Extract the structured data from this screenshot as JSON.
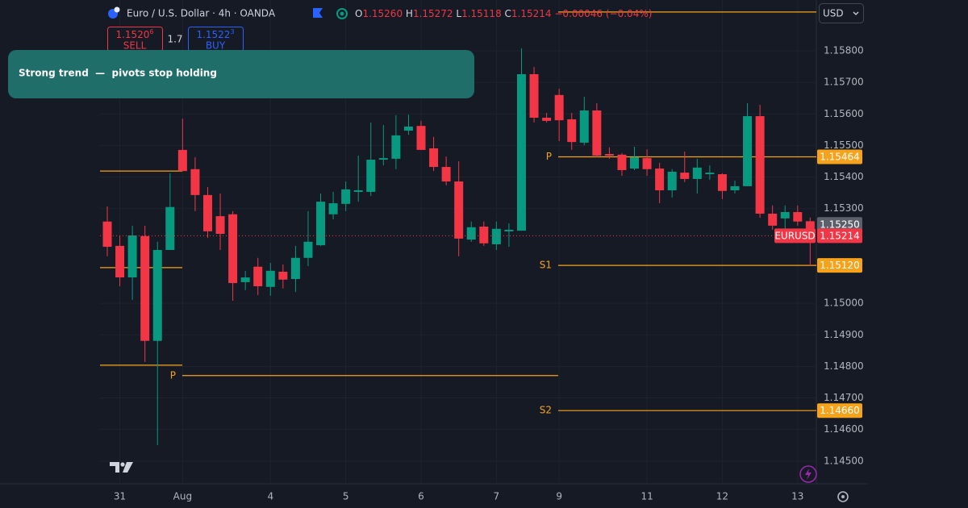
{
  "chart_data": {
    "type": "candlestick",
    "title": "Euro / U.S. Dollar · 4h · OANDA",
    "readout": [
      {
        "label": "O",
        "value": "1.15260"
      },
      {
        "label": "H",
        "value": "1.15272"
      },
      {
        "label": "L",
        "value": "1.15118"
      },
      {
        "label": "C",
        "value": "1.15214"
      }
    ],
    "change": "−0.00046 (−0.04%)",
    "sell": {
      "price": "1.1520",
      "pip": "6",
      "label": "SELL"
    },
    "spread": "1.7",
    "buy": {
      "price": "1.1522",
      "pip": "3",
      "label": "BUY"
    },
    "currency": "USD",
    "annotation": "Strong trend  —  pivots stop holding",
    "up_color": "#089981",
    "down_color": "#f23645",
    "grid": true,
    "categories": [
      null,
      "31",
      null,
      null,
      null,
      null,
      "Aug",
      null,
      null,
      null,
      null,
      null,
      null,
      "4",
      null,
      null,
      null,
      null,
      null,
      "5",
      null,
      null,
      null,
      null,
      null,
      "6",
      null,
      null,
      null,
      null,
      null,
      "7",
      null,
      null,
      null,
      null,
      "9",
      null,
      null,
      null,
      null,
      null,
      null,
      "11",
      null,
      null,
      null,
      null,
      null,
      "12",
      null,
      null,
      null,
      null,
      null,
      "13",
      null
    ],
    "open": [
      1.15259,
      1.15182,
      1.15082,
      1.15213,
      1.14881,
      1.15169,
      1.15486,
      1.15425,
      1.15343,
      1.15276,
      1.15282,
      1.15067,
      1.15116,
      1.15052,
      1.151,
      1.15077,
      1.15144,
      1.15184,
      1.15282,
      1.15315,
      1.15353,
      1.15353,
      1.15455,
      1.15458,
      1.15547,
      1.15562,
      1.15491,
      1.15432,
      1.15386,
      1.15202,
      1.15243,
      1.15187,
      1.15228,
      1.1523,
      1.15726,
      1.15588,
      1.1566,
      1.15583,
      1.15509,
      1.15611,
      1.15473,
      1.15471,
      1.15427,
      1.1546,
      1.15427,
      1.15358,
      1.15414,
      1.15394,
      1.15409,
      1.15409,
      1.15358,
      1.15371,
      1.15593,
      1.15284,
      1.15269,
      1.15289,
      1.1526
    ],
    "high": [
      1.15307,
      1.15215,
      1.15246,
      1.15246,
      1.15195,
      1.15412,
      1.15585,
      1.15463,
      1.15368,
      1.15348,
      1.15292,
      1.15103,
      1.15144,
      1.15128,
      1.15123,
      1.15182,
      1.15292,
      1.15348,
      1.15353,
      1.15386,
      1.15468,
      1.15573,
      1.15565,
      1.15596,
      1.15598,
      1.15578,
      1.15527,
      1.15465,
      1.1545,
      1.15259,
      1.15259,
      1.15259,
      1.15253,
      1.15808,
      1.15749,
      1.15603,
      1.1568,
      1.15603,
      1.15654,
      1.15634,
      1.15494,
      1.15476,
      1.15496,
      1.15488,
      1.15445,
      1.15425,
      1.15481,
      1.15458,
      1.15437,
      1.15412,
      1.15389,
      1.15634,
      1.15629,
      1.1531,
      1.1531,
      1.1531,
      1.15272
    ],
    "low": [
      1.15149,
      1.15054,
      1.15011,
      1.14814,
      1.14551,
      1.15169,
      1.15419,
      1.15292,
      1.15207,
      1.15169,
      1.15008,
      1.15042,
      1.15026,
      1.15024,
      1.15047,
      1.15036,
      1.15118,
      1.15182,
      1.15266,
      1.15292,
      1.15322,
      1.1534,
      1.15437,
      1.15425,
      1.15534,
      1.15486,
      1.15419,
      1.15374,
      1.15149,
      1.15195,
      1.15182,
      1.15169,
      1.15179,
      1.1523,
      1.15573,
      1.15573,
      1.15514,
      1.15486,
      1.15501,
      1.15463,
      1.15458,
      1.15404,
      1.15422,
      1.15404,
      1.15317,
      1.15335,
      1.15384,
      1.15348,
      1.15391,
      1.1533,
      1.15348,
      1.15371,
      1.15271,
      1.15233,
      1.15233,
      1.15246,
      1.15118
    ],
    "close": [
      1.15179,
      1.15082,
      1.15215,
      1.14881,
      1.15169,
      1.15305,
      1.15419,
      1.15343,
      1.15228,
      1.1522,
      1.15064,
      1.15082,
      1.15054,
      1.15103,
      1.15075,
      1.15144,
      1.15195,
      1.15322,
      1.15317,
      1.15361,
      1.15358,
      1.15455,
      1.1546,
      1.15532,
      1.1556,
      1.15486,
      1.15432,
      1.15386,
      1.15205,
      1.15241,
      1.1519,
      1.15236,
      1.15233,
      1.15726,
      1.15588,
      1.15578,
      1.1558,
      1.15511,
      1.15611,
      1.15468,
      1.15468,
      1.15422,
      1.15463,
      1.15425,
      1.15358,
      1.15417,
      1.15394,
      1.1543,
      1.15414,
      1.15356,
      1.15371,
      1.15593,
      1.15284,
      1.15246,
      1.15289,
      1.15259,
      1.15214
    ],
    "ylim": [
      1.14428,
      1.15961
    ],
    "yticks": [
      {
        "value": 1.158,
        "label": "1.15800"
      },
      {
        "value": 1.157,
        "label": "1.15700"
      },
      {
        "value": 1.156,
        "label": "1.15600"
      },
      {
        "value": 1.155,
        "label": "1.15500"
      },
      {
        "value": 1.154,
        "label": "1.15400"
      },
      {
        "value": 1.153,
        "label": "1.15300"
      },
      {
        "value": 1.15,
        "label": "1.15000"
      },
      {
        "value": 1.149,
        "label": "1.14900"
      },
      {
        "value": 1.148,
        "label": "1.14800"
      },
      {
        "value": 1.147,
        "label": "1.14700"
      },
      {
        "value": 1.146,
        "label": "1.14600"
      },
      {
        "value": 1.145,
        "label": "1.14500"
      }
    ],
    "levels_color": "#f7a21b",
    "levels": [
      {
        "value": 1.15419
      },
      {
        "value": 1.15113
      },
      {
        "value": 1.14804
      },
      {
        "label": "P",
        "value": 1.14771
      },
      {
        "value": 1.15923
      },
      {
        "label": "P",
        "value": 1.15464
      },
      {
        "label": "S1",
        "value": 1.1512
      },
      {
        "label": "S2",
        "value": 1.1466
      }
    ],
    "price_tags": [
      {
        "value": 1.15464,
        "label": "1.15464",
        "color": "#f7a21b"
      },
      {
        "value": 1.1525,
        "label": "1.15250",
        "color": "#5d606b"
      },
      {
        "value": 1.15214,
        "label": "1.15214",
        "name": "EURUSD",
        "color": "#f23645"
      },
      {
        "value": 1.1512,
        "label": "1.15120",
        "color": "#f7a21b"
      },
      {
        "value": 1.1466,
        "label": "1.14660",
        "color": "#f7a21b"
      }
    ]
  }
}
